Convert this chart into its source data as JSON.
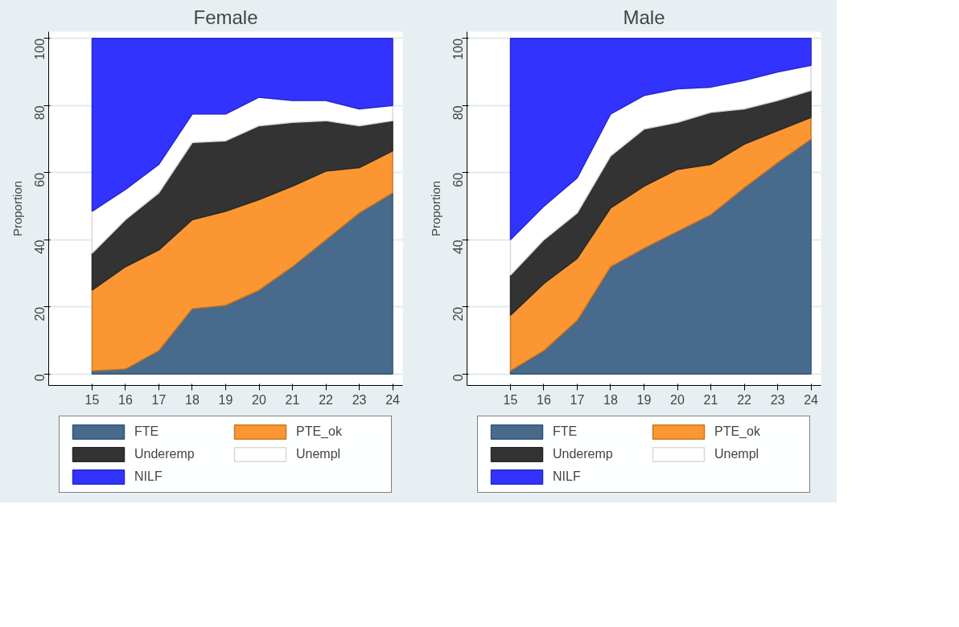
{
  "chart_data": [
    {
      "type": "area",
      "stacked": true,
      "title": "Female",
      "ylabel": "Proportion",
      "x": [
        15,
        16,
        17,
        18,
        19,
        20,
        21,
        22,
        23,
        24
      ],
      "xlim": [
        13.7,
        24.3
      ],
      "xticks": [
        15,
        16,
        17,
        18,
        19,
        20,
        21,
        22,
        23,
        24
      ],
      "ylim": [
        -3.4,
        102
      ],
      "yticks": [
        0,
        20,
        40,
        60,
        80,
        100
      ],
      "grid": "y",
      "legend": "bottom",
      "series": [
        {
          "name": "FTE",
          "color": "#486a8c",
          "values": [
            1,
            1.5,
            7,
            19.5,
            20.5,
            25,
            32,
            40,
            48,
            54
          ]
        },
        {
          "name": "PTE_ok",
          "color": "#fb9632",
          "values": [
            24,
            30.5,
            30,
            26.5,
            28,
            27,
            24,
            20.5,
            13.5,
            12.5
          ]
        },
        {
          "name": "Underemp",
          "color": "#333333",
          "values": [
            11,
            14,
            17,
            23,
            21,
            22,
            19,
            15,
            12.5,
            9
          ]
        },
        {
          "name": "Unempl",
          "color": "#ffffff",
          "values": [
            12.5,
            9,
            8.5,
            8.5,
            8,
            8.5,
            6.5,
            6,
            5,
            4.5
          ]
        },
        {
          "name": "NILF",
          "color": "#3333ff",
          "values": [
            51.5,
            45,
            37.5,
            22.5,
            22.5,
            17.5,
            18.5,
            18.5,
            21,
            20
          ]
        }
      ]
    },
    {
      "type": "area",
      "stacked": true,
      "title": "Male",
      "ylabel": "Proportion",
      "x": [
        15,
        16,
        17,
        18,
        19,
        20,
        21,
        22,
        23,
        24
      ],
      "xlim": [
        13.7,
        24.3
      ],
      "xticks": [
        15,
        16,
        17,
        18,
        19,
        20,
        21,
        22,
        23,
        24
      ],
      "ylim": [
        -3.4,
        102
      ],
      "yticks": [
        0,
        20,
        40,
        60,
        80,
        100
      ],
      "grid": "y",
      "legend": "bottom",
      "series": [
        {
          "name": "FTE",
          "color": "#486a8c",
          "values": [
            1,
            7,
            16,
            32,
            37.5,
            42.5,
            47.5,
            55.5,
            63,
            70
          ]
        },
        {
          "name": "PTE_ok",
          "color": "#fb9632",
          "values": [
            16.5,
            20,
            18.5,
            17.5,
            18.5,
            18.5,
            15,
            13,
            9.5,
            6.5
          ]
        },
        {
          "name": "Underemp",
          "color": "#333333",
          "values": [
            12,
            13,
            13.5,
            15.5,
            17,
            14,
            15.5,
            10.5,
            9,
            8
          ]
        },
        {
          "name": "Unempl",
          "color": "#ffffff",
          "values": [
            10.5,
            10,
            10.5,
            12.5,
            10,
            10,
            7.5,
            8.5,
            8.5,
            7.5
          ]
        },
        {
          "name": "NILF",
          "color": "#3333ff",
          "values": [
            60,
            50,
            41.5,
            22.5,
            17,
            15,
            14.5,
            12.5,
            10,
            8
          ]
        }
      ]
    }
  ]
}
